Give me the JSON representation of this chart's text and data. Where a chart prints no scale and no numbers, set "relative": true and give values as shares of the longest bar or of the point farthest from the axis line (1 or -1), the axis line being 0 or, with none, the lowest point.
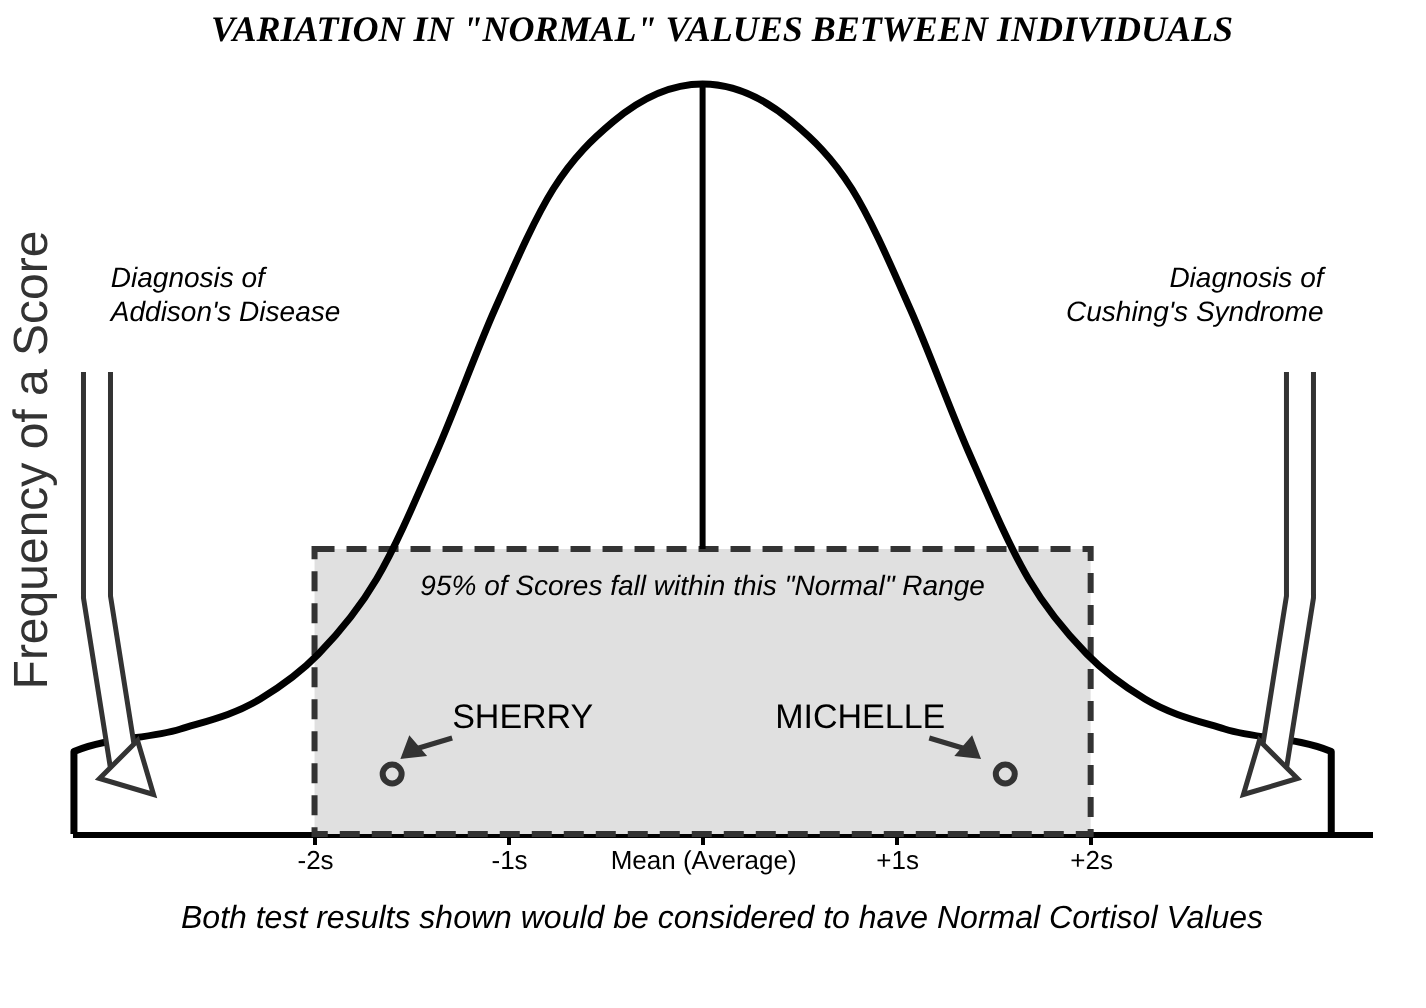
{
  "chart_data": {
    "type": "line",
    "relative": true,
    "title": "VARIATION IN \"NORMAL\" VALUES BETWEEN INDIVIDUALS",
    "ylabel": "Frequency of a Score",
    "xlim": [
      -3.25,
      3.45
    ],
    "xticks": [
      {
        "value": -2,
        "label": "-2s"
      },
      {
        "value": -1,
        "label": "-1s"
      },
      {
        "value": 0,
        "label": "Mean (Average)"
      },
      {
        "value": 1,
        "label": "+1s"
      },
      {
        "value": 2,
        "label": "+2s"
      }
    ],
    "series": [
      {
        "color": "#000000",
        "x": [
          -3.24,
          -3.24,
          -2.69,
          -2.28,
          -1.98,
          -1.68,
          -1.37,
          -1.07,
          -0.77,
          -0.46,
          0,
          0.46,
          0.77,
          1.07,
          1.37,
          1.68,
          1.98,
          2.28,
          2.69,
          3.24,
          3.24
        ],
        "values": [
          0,
          0.11,
          0.14,
          0.18,
          0.24,
          0.34,
          0.51,
          0.7,
          0.86,
          0.95,
          1,
          0.95,
          0.86,
          0.7,
          0.51,
          0.34,
          0.24,
          0.18,
          0.14,
          0.11,
          0
        ]
      },
      {
        "type": "scatter",
        "name": "SHERRY",
        "color": "#333333",
        "marker": "circle",
        "x": [
          -1.6
        ],
        "values": [
          0.08
        ]
      },
      {
        "type": "scatter",
        "name": "MICHELLE",
        "color": "#333333",
        "marker": "circle",
        "x": [
          1.56
        ],
        "values": [
          0.08
        ]
      }
    ],
    "bands": [
      {
        "axis": "x",
        "from": -2,
        "to": 2,
        "label": "95% of Scores fall within this \"Normal\" Range",
        "color": "#e0e0e0"
      }
    ],
    "ref_lines": [
      {
        "axis": "x",
        "value": 0
      }
    ],
    "annotations": [
      "Diagnosis of Addison's Disease",
      "Diagnosis of Cushing's Syndrome",
      "Both test results shown would be considered to have Normal Cortisol Values"
    ]
  }
}
